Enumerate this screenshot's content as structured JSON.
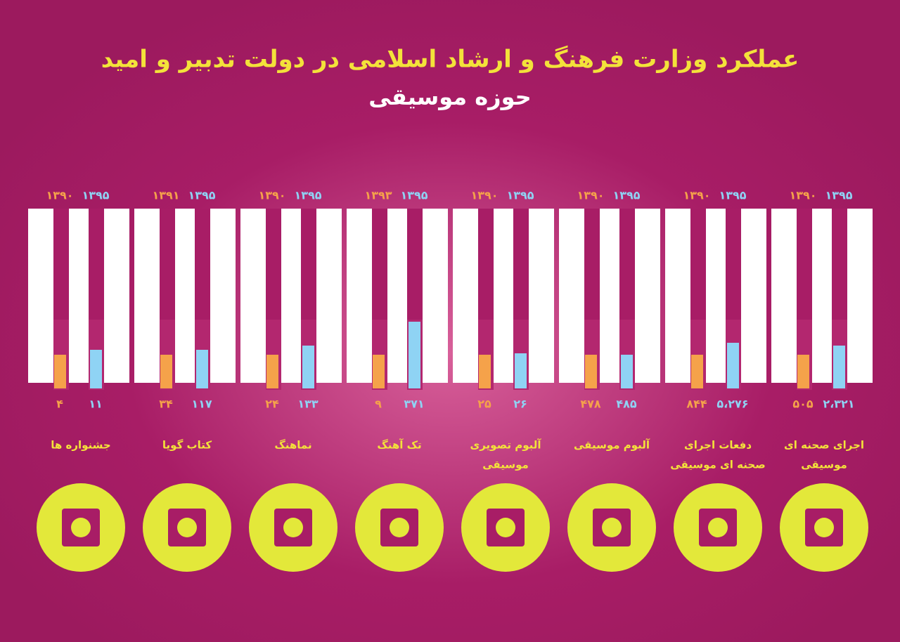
{
  "header": {
    "title": "عملکرد وزارت فرهنگ و ارشاد اسلامی در دولت تدبیر و امید",
    "subtitle": "حوزه موسیقی"
  },
  "groups": [
    {
      "label": [
        "اجرای صحنه ای",
        "موسیقی"
      ],
      "years": [
        "۱۳۹۰",
        "۱۳۹۵"
      ],
      "values": [
        "۵۰۵",
        "۲،۳۲۱"
      ]
    },
    {
      "label": [
        "دفعات اجرای",
        "صحنه ای موسیقی"
      ],
      "years": [
        "۱۳۹۰",
        "۱۳۹۵"
      ],
      "values": [
        "۸۴۴",
        "۵،۲۷۶"
      ]
    },
    {
      "label": [
        "آلبوم موسیقی"
      ],
      "years": [
        "۱۳۹۰",
        "۱۳۹۵"
      ],
      "values": [
        "۴۷۸",
        "۴۸۵"
      ]
    },
    {
      "label": [
        "آلبوم تصویری",
        "موسیقی"
      ],
      "years": [
        "۱۳۹۰",
        "۱۳۹۵"
      ],
      "values": [
        "۲۵",
        "۲۶"
      ]
    },
    {
      "label": [
        "تک آهنگ"
      ],
      "years": [
        "۱۳۹۳",
        "۱۳۹۵"
      ],
      "values": [
        "۹",
        "۳۷۱"
      ]
    },
    {
      "label": [
        "نماهنگ"
      ],
      "years": [
        "۱۳۹۰",
        "۱۳۹۵"
      ],
      "values": [
        "۲۴",
        "۱۳۳"
      ]
    },
    {
      "label": [
        "کتاب گویا"
      ],
      "years": [
        "۱۳۹۱",
        "۱۳۹۵"
      ],
      "values": [
        "۳۴",
        "۱۱۷"
      ]
    },
    {
      "label": [
        "جشنواره ها"
      ],
      "years": [
        "۱۳۹۰",
        "۱۳۹۵"
      ],
      "values": [
        "۴",
        "۱۱"
      ]
    }
  ]
}
